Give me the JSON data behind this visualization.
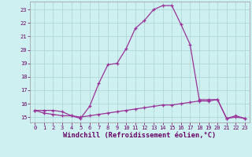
{
  "line1_x": [
    0,
    1,
    2,
    3,
    4,
    5,
    6,
    7,
    8,
    9,
    10,
    11,
    12,
    13,
    14,
    15,
    16,
    17,
    18,
    19,
    20,
    21,
    22,
    23
  ],
  "line1_y": [
    15.5,
    15.5,
    15.5,
    15.4,
    15.1,
    14.9,
    15.8,
    17.5,
    18.9,
    19.0,
    20.1,
    21.6,
    22.2,
    23.0,
    23.3,
    23.3,
    21.9,
    20.4,
    16.3,
    16.3,
    16.3,
    14.9,
    15.1,
    14.9
  ],
  "line2_x": [
    0,
    1,
    2,
    3,
    4,
    5,
    6,
    7,
    8,
    9,
    10,
    11,
    12,
    13,
    14,
    15,
    16,
    17,
    18,
    19,
    20,
    21,
    22,
    23
  ],
  "line2_y": [
    15.5,
    15.3,
    15.2,
    15.1,
    15.1,
    15.0,
    15.1,
    15.2,
    15.3,
    15.4,
    15.5,
    15.6,
    15.7,
    15.8,
    15.9,
    15.9,
    16.0,
    16.1,
    16.2,
    16.2,
    16.3,
    14.9,
    15.0,
    14.9
  ],
  "line_color": "#993399",
  "bg_color": "#cff0f0",
  "grid_color": "#b0d8d8",
  "xlabel": "Windchill (Refroidissement éolien,°C)",
  "ylim": [
    14.6,
    23.6
  ],
  "xlim": [
    -0.5,
    23.5
  ],
  "yticks": [
    15,
    16,
    17,
    18,
    19,
    20,
    21,
    22,
    23
  ],
  "xticks": [
    0,
    1,
    2,
    3,
    4,
    5,
    6,
    7,
    8,
    9,
    10,
    11,
    12,
    13,
    14,
    15,
    16,
    17,
    18,
    19,
    20,
    21,
    22,
    23
  ],
  "tick_fontsize": 5.0,
  "xlabel_fontsize": 6.2,
  "tick_color": "#660066",
  "spine_color": "#999999"
}
